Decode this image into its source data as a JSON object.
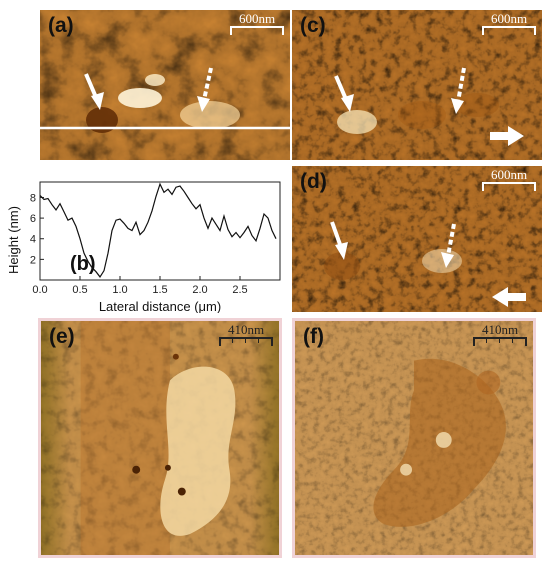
{
  "panels": {
    "a": {
      "label": "(a)",
      "scale": "600nm"
    },
    "c": {
      "label": "(c)",
      "scale": "600nm"
    },
    "d": {
      "label": "(d)",
      "scale": "600nm"
    },
    "e": {
      "label": "(e)",
      "scale": "410nm"
    },
    "f": {
      "label": "(f)",
      "scale": "410nm"
    }
  },
  "colors": {
    "afm_dark": "#a85a14",
    "afm_mid": "#d9923e",
    "afm_light": "#f7dca5",
    "border": "#f0d2d6"
  },
  "icons": [
    "solid-arrow-icon",
    "dashed-arrow-icon",
    "scan-direction-arrow-icon"
  ],
  "chart_data": {
    "type": "line",
    "panel_label": "(b)",
    "xlabel": "Lateral distance (μm)",
    "ylabel": "Height (nm)",
    "xlim": [
      0,
      3
    ],
    "ylim": [
      0,
      9.5
    ],
    "xticks": [
      "0.0",
      "0.5",
      "1.0",
      "1.5",
      "2.0",
      "2.5"
    ],
    "yticks": [
      "2",
      "4",
      "6",
      "8"
    ],
    "x": [
      0.0,
      0.05,
      0.1,
      0.15,
      0.2,
      0.25,
      0.3,
      0.35,
      0.4,
      0.45,
      0.5,
      0.55,
      0.6,
      0.65,
      0.7,
      0.75,
      0.8,
      0.85,
      0.9,
      0.95,
      1.0,
      1.05,
      1.1,
      1.15,
      1.2,
      1.25,
      1.3,
      1.35,
      1.4,
      1.45,
      1.5,
      1.55,
      1.6,
      1.65,
      1.7,
      1.75,
      1.8,
      1.85,
      1.9,
      1.95,
      2.0,
      2.05,
      2.1,
      2.15,
      2.2,
      2.25,
      2.3,
      2.35,
      2.4,
      2.45,
      2.5,
      2.55,
      2.6,
      2.65,
      2.7,
      2.75,
      2.8,
      2.85,
      2.9,
      2.95
    ],
    "y": [
      8.2,
      7.8,
      7.9,
      7.3,
      6.8,
      7.4,
      6.6,
      5.8,
      6.0,
      5.2,
      4.0,
      2.6,
      1.8,
      1.2,
      0.8,
      0.3,
      0.9,
      2.6,
      4.8,
      5.8,
      5.9,
      5.5,
      5.0,
      4.8,
      5.6,
      4.4,
      4.8,
      5.6,
      6.7,
      8.1,
      9.3,
      8.5,
      8.8,
      8.3,
      9.0,
      9.1,
      8.6,
      8.0,
      7.4,
      6.9,
      7.3,
      6.0,
      5.0,
      6.0,
      5.4,
      4.8,
      6.2,
      4.9,
      4.2,
      4.6,
      4.1,
      4.6,
      5.2,
      4.3,
      3.8,
      5.0,
      6.4,
      6.0,
      4.8,
      4.0
    ]
  }
}
